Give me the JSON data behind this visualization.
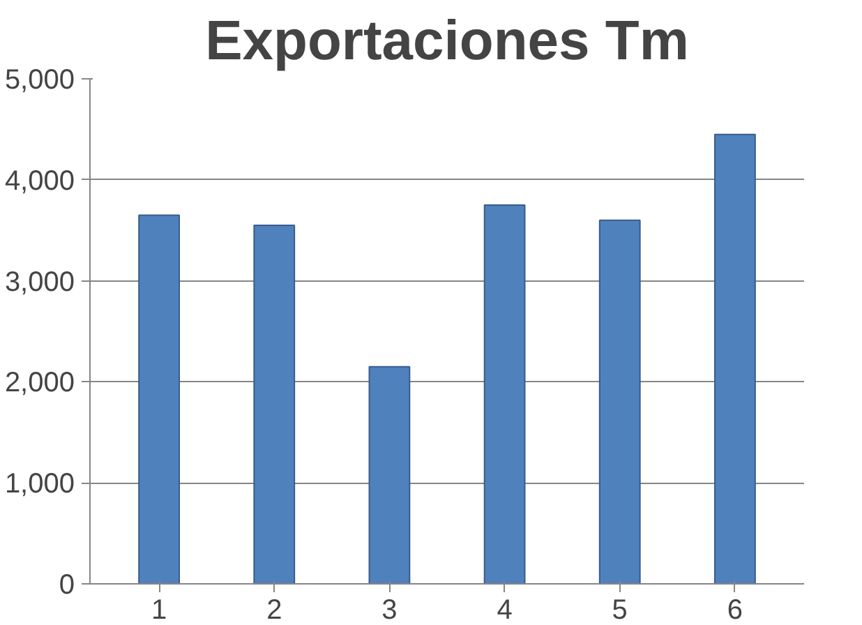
{
  "chart_data": {
    "type": "bar",
    "title": "Exportaciones Tm",
    "categories": [
      "1",
      "2",
      "3",
      "4",
      "5",
      "6"
    ],
    "values": [
      3650,
      3550,
      2150,
      3750,
      3600,
      4450
    ],
    "color": "#4f81bd",
    "ylim": [
      0,
      5000
    ],
    "yticks": [
      {
        "value": 0,
        "label": "0"
      },
      {
        "value": 1000,
        "label": "1,000"
      },
      {
        "value": 2000,
        "label": "2,000"
      },
      {
        "value": 3000,
        "label": "3,000"
      },
      {
        "value": 4000,
        "label": "4,000"
      },
      {
        "value": 5000,
        "label": "5,000"
      }
    ],
    "grid": "y"
  }
}
